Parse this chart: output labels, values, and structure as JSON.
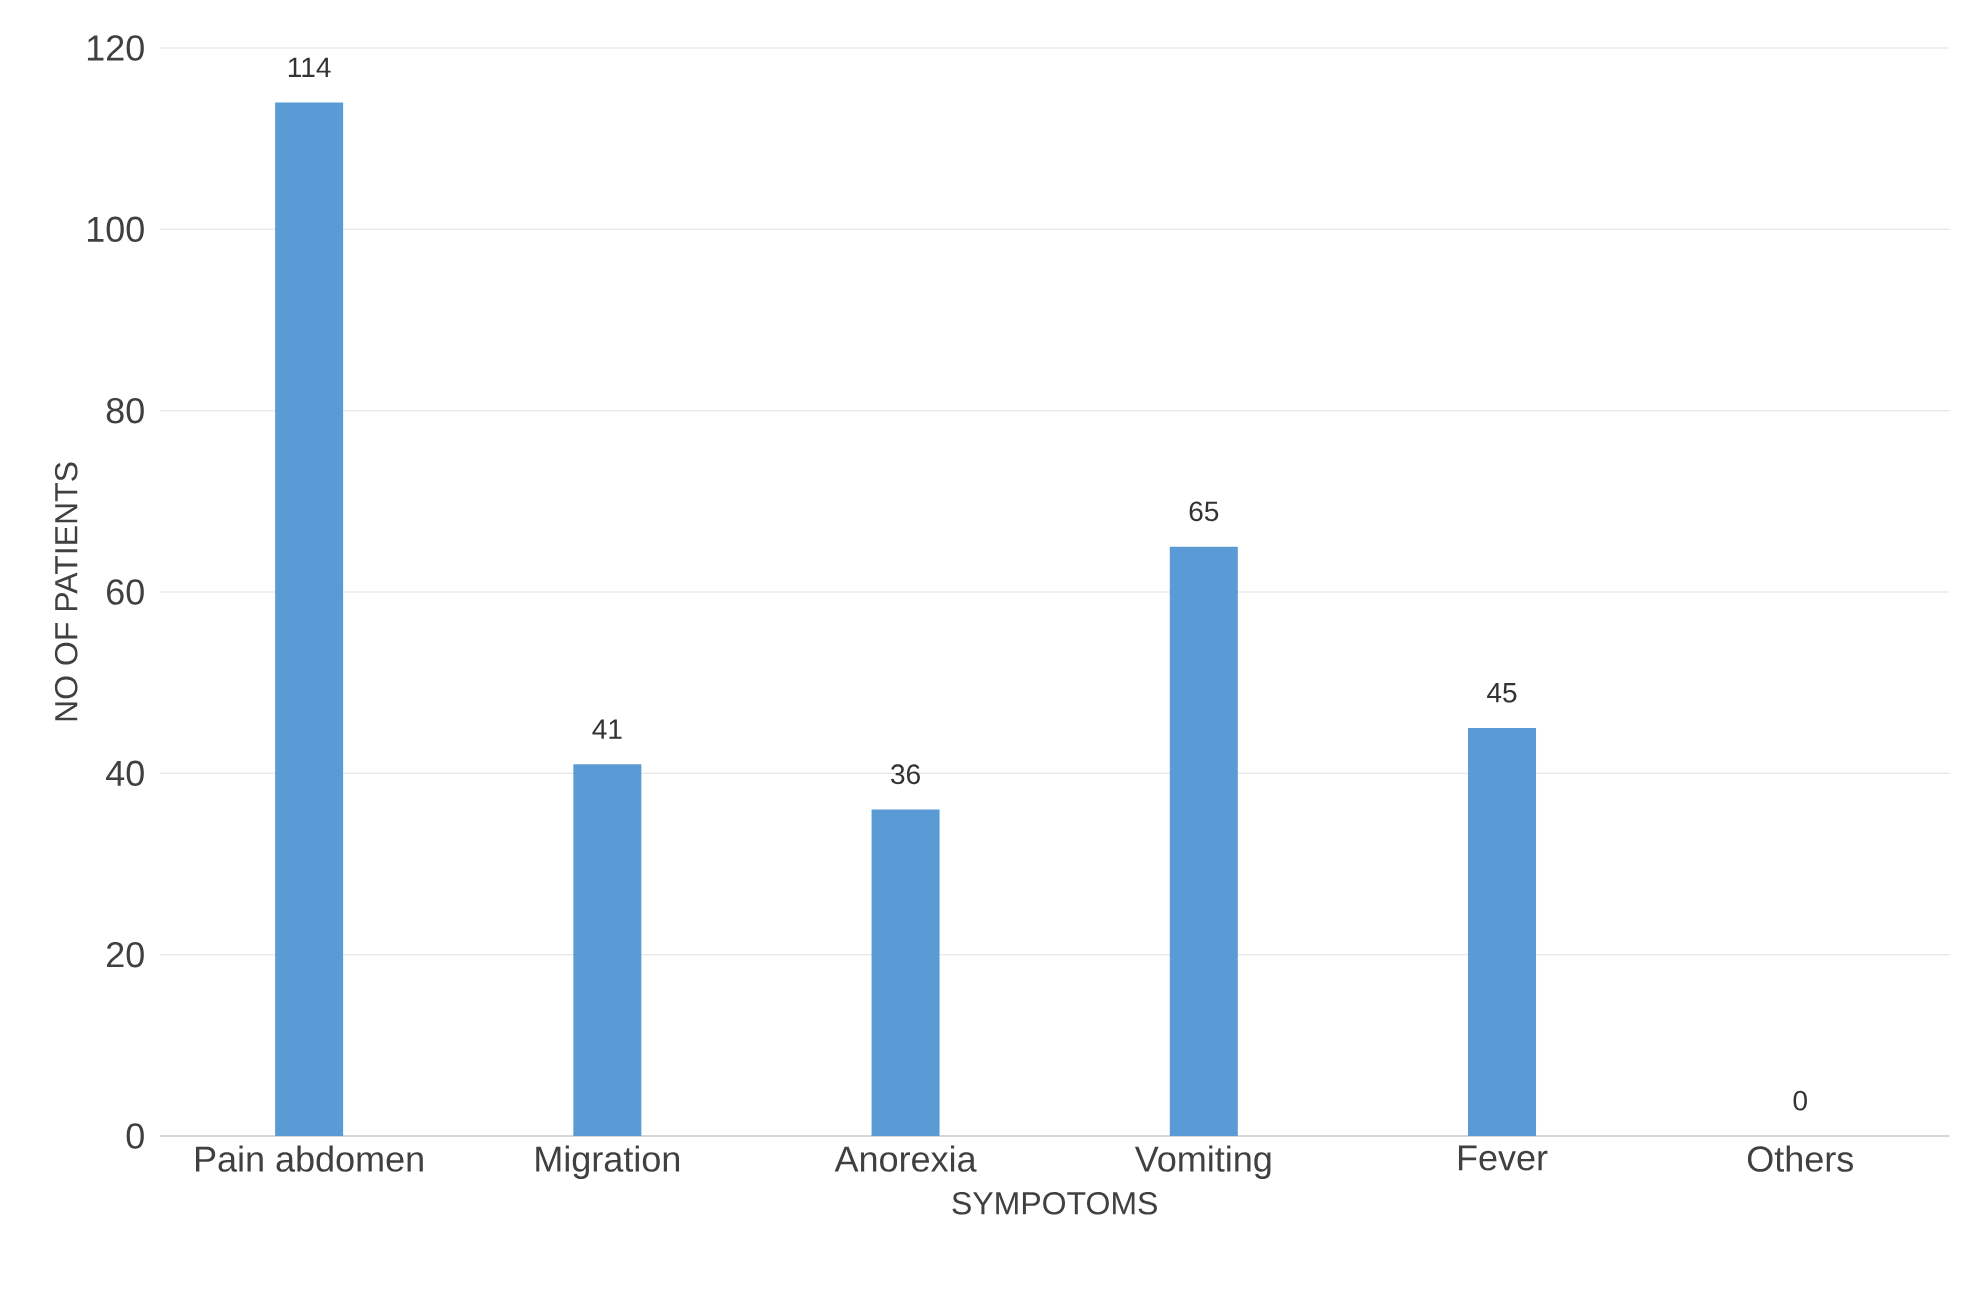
{
  "chart_data": {
    "type": "bar",
    "xlabel": "SYMPOTOMS",
    "ylabel": "NO OF PATIENTS",
    "categories": [
      "Pain abdomen",
      "Migration",
      "Anorexia",
      "Vomiting",
      "Fever",
      "Others"
    ],
    "values": [
      114,
      41,
      36,
      65,
      45,
      0
    ],
    "color": "#5b9bd5",
    "ylim": [
      0,
      120
    ],
    "yticks": [
      0,
      20,
      40,
      60,
      80,
      100,
      120
    ],
    "grid": "y",
    "data_labels": true
  }
}
